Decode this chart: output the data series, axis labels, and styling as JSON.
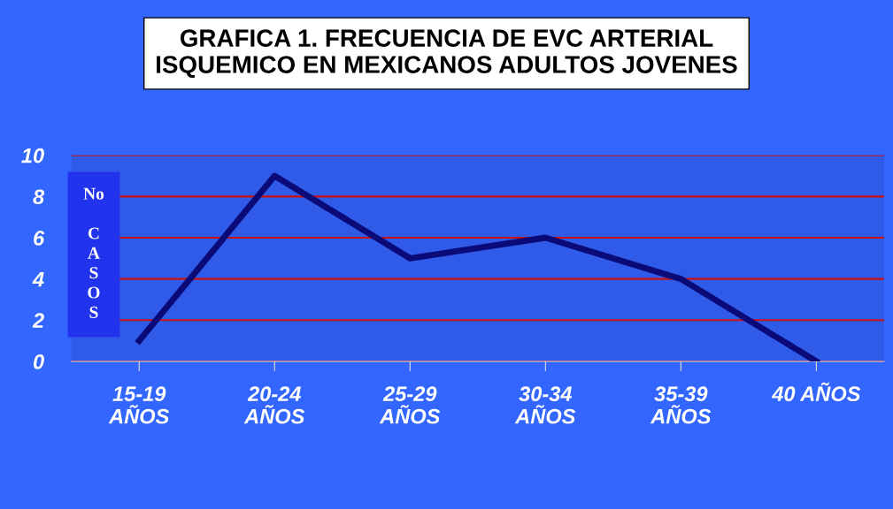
{
  "chart_data": {
    "type": "line",
    "title": "GRAFICA 1. FRECUENCIA DE EVC ARTERIAL\nISQUEMICO EN MEXICANOS ADULTOS JOVENES",
    "ylabel": "No CASOS",
    "categories": [
      "15-19\nAÑOS",
      "20-24\nAÑOS",
      "25-29\nAÑOS",
      "30-34\nAÑOS",
      "35-39\nAÑOS",
      "40 AÑOS"
    ],
    "series": [
      {
        "color": "#0a0a78",
        "values": [
          1,
          9,
          5,
          6,
          4,
          0
        ]
      }
    ],
    "ylim": [
      0,
      10
    ],
    "yticks": [
      0,
      2,
      4,
      6,
      8,
      10
    ],
    "grid": "y",
    "legend": false,
    "marker": "none",
    "line_style": "solid"
  }
}
